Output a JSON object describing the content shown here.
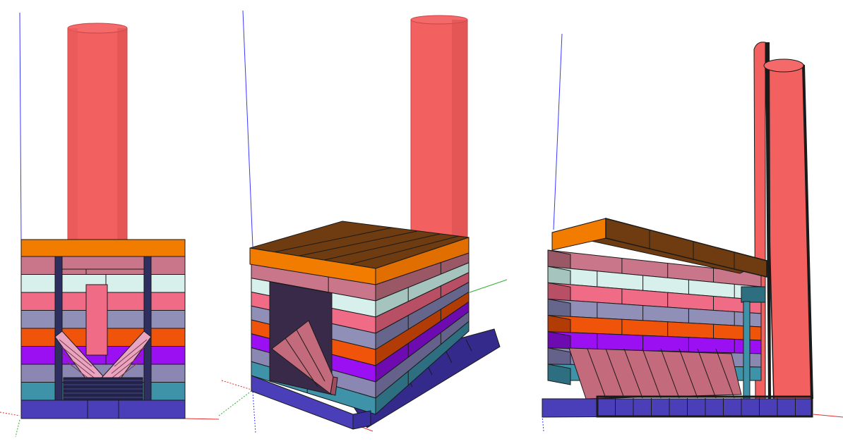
{
  "title": "",
  "views": [
    {
      "name": "front",
      "label": ""
    },
    {
      "name": "perspective",
      "label": ""
    },
    {
      "name": "side-cutaway",
      "label": ""
    }
  ],
  "components": [
    "chimney-pipe",
    "top-slab",
    "brick-courses",
    "base-course",
    "angled-baffle"
  ],
  "colors": {
    "background": "#ffffff",
    "pipe": "#f26060",
    "pipe_dark": "#c84646",
    "slab_front": "#f17c00",
    "slab_top": "#6e3c10",
    "base": "#4a3fb8",
    "base_dark": "#332a8c",
    "baffle": "#c36a7c",
    "outline": "#1a1a1a",
    "axis_blue": "#3a3aff",
    "axis_red": "#e03030",
    "axis_green": "#30b030"
  },
  "course_colors": [
    "#3e93a8",
    "#8a87b3",
    "#9b10f2",
    "#f0530a",
    "#8f8fb8",
    "#f06b86",
    "#d8f0ec",
    "#c9768a"
  ],
  "course_shades": [
    "#2d6f80",
    "#64628a",
    "#6d0bb0",
    "#b23c05",
    "#66668c",
    "#b84f64",
    "#a6c4be",
    "#9a5766"
  ]
}
